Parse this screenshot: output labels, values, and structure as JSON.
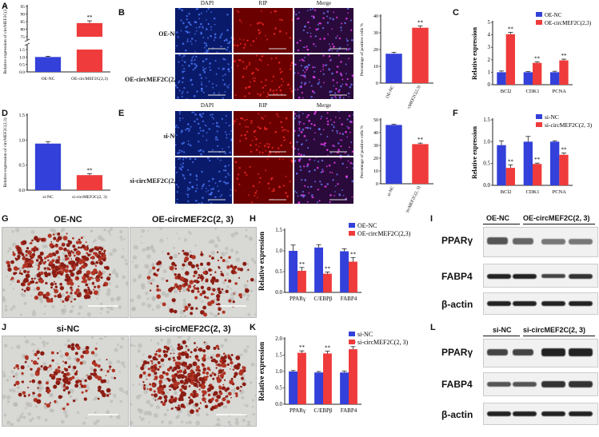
{
  "panels": {
    "A": "A",
    "B": "B",
    "C": "C",
    "D": "D",
    "E": "E",
    "F": "F",
    "G": "G",
    "H": "H",
    "I": "I",
    "J": "J",
    "K": "K",
    "L": "L"
  },
  "fluor": {
    "cols": [
      "DAPI",
      "RIP",
      "Merge"
    ],
    "rowsB": [
      "OE-NC",
      "OE-circMEF2C(2, 3)"
    ],
    "rowsE": [
      "si-NC",
      "si-circMEF2C(2, 3)"
    ]
  },
  "micro": {
    "G": [
      "OE-NC",
      "OE-circMEF2C(2, 3)"
    ],
    "J": [
      "si-NC",
      "si-circMEF2C(2, 3)"
    ]
  },
  "blots": {
    "I_header": [
      "OE-NC",
      "OE-circMEF2C(2, 3)"
    ],
    "L_header": [
      "si-NC",
      "si-circMEF2C(2, 3)"
    ],
    "proteins": [
      "PPARγ",
      "FABP4",
      "β-actin"
    ]
  },
  "colors": {
    "blue": "#3340d9",
    "red": "#ef3b3b",
    "dapi": "#0a1a6a",
    "rip": "#6a0000"
  },
  "chart_data": [
    {
      "id": "A",
      "type": "bar",
      "ylabel": "Relative expression of circMEF2C(2,3)",
      "categories": [
        "OE-NC",
        "OE-circMEF2C(2,3)"
      ],
      "values": [
        1.0,
        84
      ],
      "errors": [
        0.05,
        1.5
      ],
      "axis_break": [
        1.5,
        75
      ],
      "yticks": [
        "0.0",
        "0.5",
        "1.0",
        "1.5",
        "75",
        "80",
        "85",
        "90",
        "95"
      ],
      "sig": [
        "",
        "**"
      ]
    },
    {
      "id": "B",
      "type": "bar",
      "ylabel": "Percentage of positive cells %",
      "categories": [
        "OE-NC",
        "OE-circMEF2C(2,3)"
      ],
      "values": [
        17.5,
        33
      ],
      "errors": [
        0.8,
        1
      ],
      "ylim": [
        0,
        40
      ],
      "yticks": [
        "0",
        "10",
        "20",
        "30",
        "40"
      ],
      "sig": [
        "",
        "**"
      ]
    },
    {
      "id": "C",
      "type": "bar",
      "ylabel": "Relative expression",
      "categories": [
        "BCl2",
        "CDK1",
        "PCNA"
      ],
      "series": [
        {
          "name": "OE-NC",
          "values": [
            1.0,
            1.0,
            1.0
          ],
          "errors": [
            0.1,
            0.05,
            0.08
          ]
        },
        {
          "name": "OE-circMEF2C(2,3)",
          "values": [
            4.05,
            1.75,
            1.95
          ],
          "errors": [
            0.15,
            0.08,
            0.1
          ]
        }
      ],
      "ylim": [
        0,
        5
      ],
      "yticks": [
        "0",
        "1",
        "2",
        "3",
        "4",
        "5"
      ],
      "sig": [
        "**",
        "**",
        "**"
      ]
    },
    {
      "id": "D",
      "type": "bar",
      "ylabel": "Relative expression of circMEF2C(2,3)",
      "categories": [
        "si-NC",
        "si-circMEF2C(2, 3)"
      ],
      "values": [
        0.93,
        0.3
      ],
      "errors": [
        0.04,
        0.03
      ],
      "ylim": [
        0,
        1.5
      ],
      "yticks": [
        "0.0",
        "0.5",
        "1.0",
        "1.5"
      ],
      "sig": [
        "",
        "**"
      ]
    },
    {
      "id": "E",
      "type": "bar",
      "ylabel": "Percentage of positive cells %",
      "categories": [
        "si-NC",
        "si-circMEF2C(2, 3)"
      ],
      "values": [
        46,
        31
      ],
      "errors": [
        0.5,
        0.8
      ],
      "ylim": [
        0,
        50
      ],
      "yticks": [
        "0",
        "10",
        "20",
        "30",
        "40",
        "50"
      ],
      "sig": [
        "",
        "**"
      ]
    },
    {
      "id": "F",
      "type": "bar",
      "ylabel": "Relative expression",
      "categories": [
        "BCl2",
        "CDK1",
        "PCNA"
      ],
      "series": [
        {
          "name": "si-NC",
          "values": [
            0.92,
            1.0,
            1.0
          ],
          "errors": [
            0.1,
            0.12,
            0.02
          ]
        },
        {
          "name": "si-circMEF2C(2, 3)",
          "values": [
            0.4,
            0.49,
            0.7
          ],
          "errors": [
            0.07,
            0.02,
            0.04
          ]
        }
      ],
      "ylim": [
        0,
        1.5
      ],
      "yticks": [
        "0.0",
        "0.5",
        "1.0",
        "1.5"
      ],
      "sig": [
        "**",
        "**",
        "**"
      ]
    },
    {
      "id": "H",
      "type": "bar",
      "ylabel": "Relative expression",
      "categories": [
        "PPARγ",
        "C/EBPβ",
        "FABP4"
      ],
      "series": [
        {
          "name": "OE-NC",
          "values": [
            1.0,
            1.08,
            0.99
          ],
          "errors": [
            0.14,
            0.07,
            0.06
          ]
        },
        {
          "name": "OE-circMEF2C(2,3)",
          "values": [
            0.52,
            0.45,
            0.74
          ],
          "errors": [
            0.08,
            0.04,
            0.1
          ]
        }
      ],
      "ylim": [
        0,
        1.5
      ],
      "yticks": [
        "0.0",
        "0.5",
        "1.0",
        "1.5"
      ],
      "sig": [
        "**",
        "**",
        "**"
      ]
    },
    {
      "id": "K",
      "type": "bar",
      "ylabel": "Relative expression",
      "categories": [
        "PPARγ",
        "C/EBPβ",
        "FABP4"
      ],
      "series": [
        {
          "name": "si-NC",
          "values": [
            1.0,
            0.97,
            0.97
          ],
          "errors": [
            0.03,
            0.03,
            0.04
          ]
        },
        {
          "name": "si-circMEF2C(2, 3)",
          "values": [
            1.57,
            1.55,
            1.68
          ],
          "errors": [
            0.06,
            0.07,
            0.08
          ]
        }
      ],
      "ylim": [
        0,
        2.0
      ],
      "yticks": [
        "0.0",
        "0.5",
        "1.0",
        "1.5",
        "2.0"
      ],
      "sig": [
        "**",
        "**",
        "**"
      ]
    }
  ]
}
